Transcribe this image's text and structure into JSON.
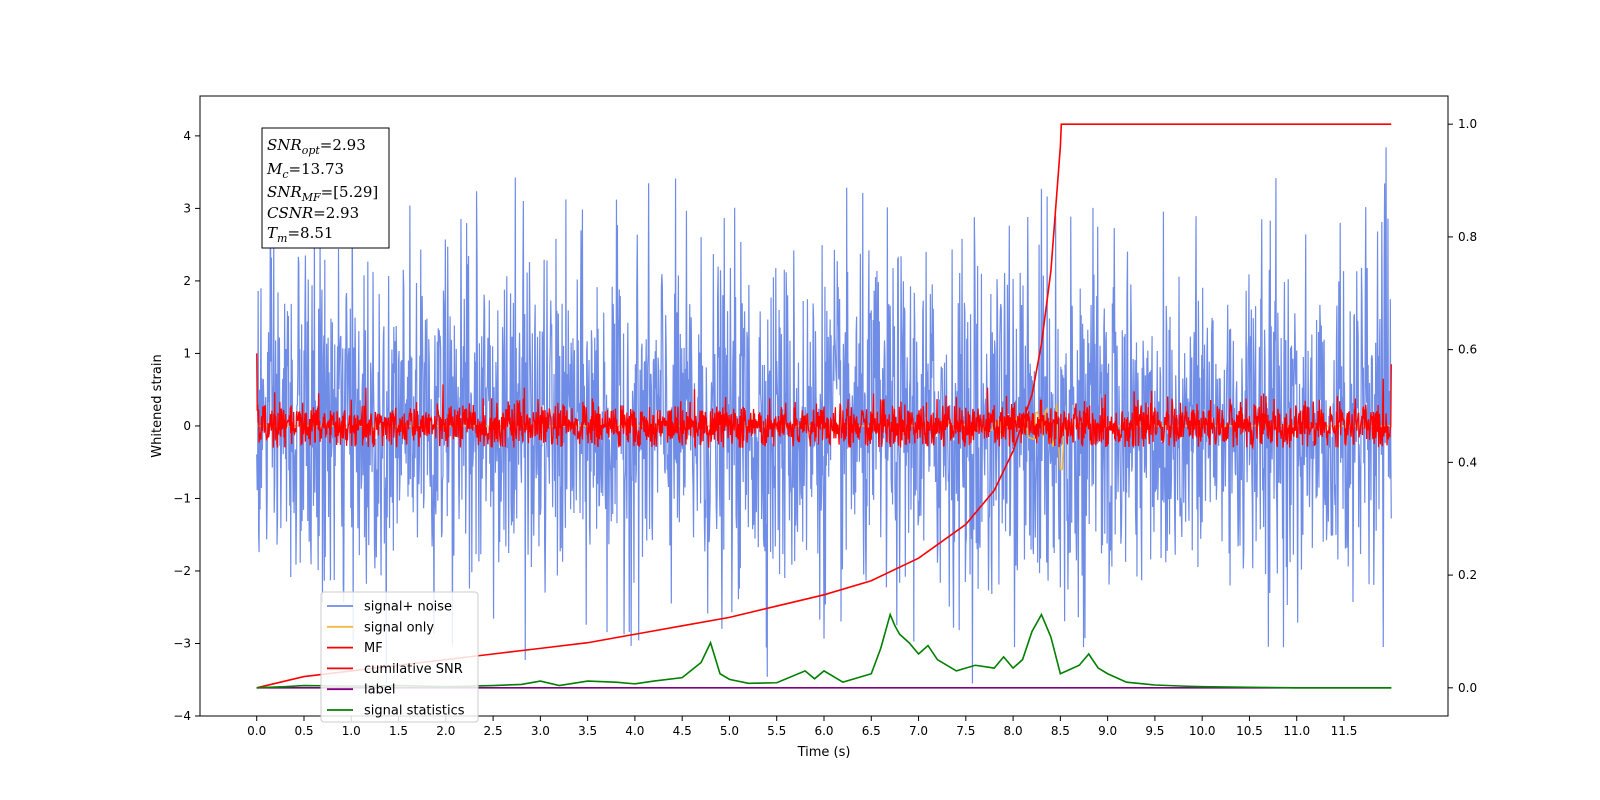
{
  "chart_data": {
    "type": "line",
    "xlabel": "Time (s)",
    "ylabel": "Whitened strain",
    "xlim": [
      -0.6,
      12.6
    ],
    "ylim": [
      -4.0,
      4.55
    ],
    "y2lim": [
      -0.05,
      1.05
    ],
    "x_ticks": [
      "0.0",
      "0.5",
      "1.0",
      "1.5",
      "2.0",
      "2.5",
      "3.0",
      "3.5",
      "4.0",
      "4.5",
      "5.0",
      "5.5",
      "6.0",
      "6.5",
      "7.0",
      "7.5",
      "8.0",
      "8.5",
      "9.0",
      "9.5",
      "10.0",
      "10.5",
      "11.0",
      "11.5"
    ],
    "y_ticks": [
      "−4",
      "−3",
      "−2",
      "−1",
      "0",
      "1",
      "2",
      "3",
      "4"
    ],
    "y2_ticks": [
      "0.0",
      "0.2",
      "0.4",
      "0.6",
      "0.8",
      "1.0"
    ],
    "info_box": {
      "snr_opt": "=2.93",
      "mc": "=13.73",
      "snr_mf": "=[5.29]",
      "csnr": "=2.93",
      "tm": "=8.51"
    },
    "legend_position": "lower-left",
    "series": [
      {
        "name": "signal+ noise",
        "color": "#6f8ce6",
        "axis": "left",
        "amplitude_range": [
          -3.6,
          4.2
        ],
        "x_range": [
          0.0,
          12.0
        ]
      },
      {
        "name": "signal only",
        "color": "#f5b942",
        "axis": "left",
        "peak_time": 8.51,
        "range": [
          -0.6,
          0.45
        ]
      },
      {
        "name": "MF",
        "color": "#ff0000",
        "axis": "left",
        "amplitude_range": [
          -0.3,
          1.0
        ],
        "x_range": [
          0.0,
          12.0
        ]
      },
      {
        "name": "cumilative SNR",
        "color": "#ff0000",
        "axis": "right",
        "x": [
          0.0,
          0.5,
          1.0,
          1.5,
          2.0,
          2.5,
          3.0,
          3.5,
          4.0,
          4.5,
          5.0,
          5.5,
          6.0,
          6.5,
          7.0,
          7.5,
          7.8,
          8.0,
          8.2,
          8.3,
          8.4,
          8.45,
          8.5,
          8.51,
          9.0,
          10.0,
          11.0,
          12.0
        ],
        "values": [
          0.0,
          0.02,
          0.03,
          0.04,
          0.05,
          0.06,
          0.07,
          0.08,
          0.095,
          0.11,
          0.125,
          0.145,
          0.165,
          0.19,
          0.23,
          0.29,
          0.35,
          0.42,
          0.52,
          0.61,
          0.74,
          0.85,
          0.96,
          1.0,
          1.0,
          1.0,
          1.0,
          1.0
        ]
      },
      {
        "name": "label",
        "color": "#800080",
        "axis": "right",
        "x": [
          0.0,
          12.0
        ],
        "values": [
          0.0,
          0.0
        ]
      },
      {
        "name": "signal statistics",
        "color": "#008000",
        "axis": "right",
        "x": [
          0.0,
          0.3,
          0.5,
          1.0,
          1.5,
          2.0,
          2.5,
          2.8,
          3.0,
          3.2,
          3.5,
          3.8,
          4.0,
          4.2,
          4.5,
          4.7,
          4.8,
          4.9,
          5.0,
          5.2,
          5.5,
          5.8,
          5.9,
          6.0,
          6.2,
          6.5,
          6.6,
          6.7,
          6.75,
          6.8,
          6.9,
          7.0,
          7.1,
          7.2,
          7.4,
          7.6,
          7.8,
          7.9,
          8.0,
          8.1,
          8.2,
          8.3,
          8.4,
          8.5,
          8.7,
          8.8,
          8.9,
          9.0,
          9.2,
          9.5,
          9.8,
          10.0,
          10.5,
          11.0,
          11.5,
          12.0
        ],
        "values": [
          0.0,
          0.002,
          0.004,
          0.003,
          0.004,
          0.002,
          0.004,
          0.006,
          0.012,
          0.004,
          0.012,
          0.01,
          0.007,
          0.012,
          0.018,
          0.045,
          0.08,
          0.025,
          0.015,
          0.008,
          0.009,
          0.03,
          0.016,
          0.03,
          0.01,
          0.025,
          0.07,
          0.13,
          0.11,
          0.095,
          0.08,
          0.06,
          0.075,
          0.05,
          0.03,
          0.04,
          0.035,
          0.055,
          0.035,
          0.05,
          0.1,
          0.13,
          0.09,
          0.025,
          0.04,
          0.06,
          0.035,
          0.025,
          0.01,
          0.005,
          0.003,
          0.002,
          0.001,
          0.0,
          0.0,
          0.0
        ]
      }
    ]
  }
}
